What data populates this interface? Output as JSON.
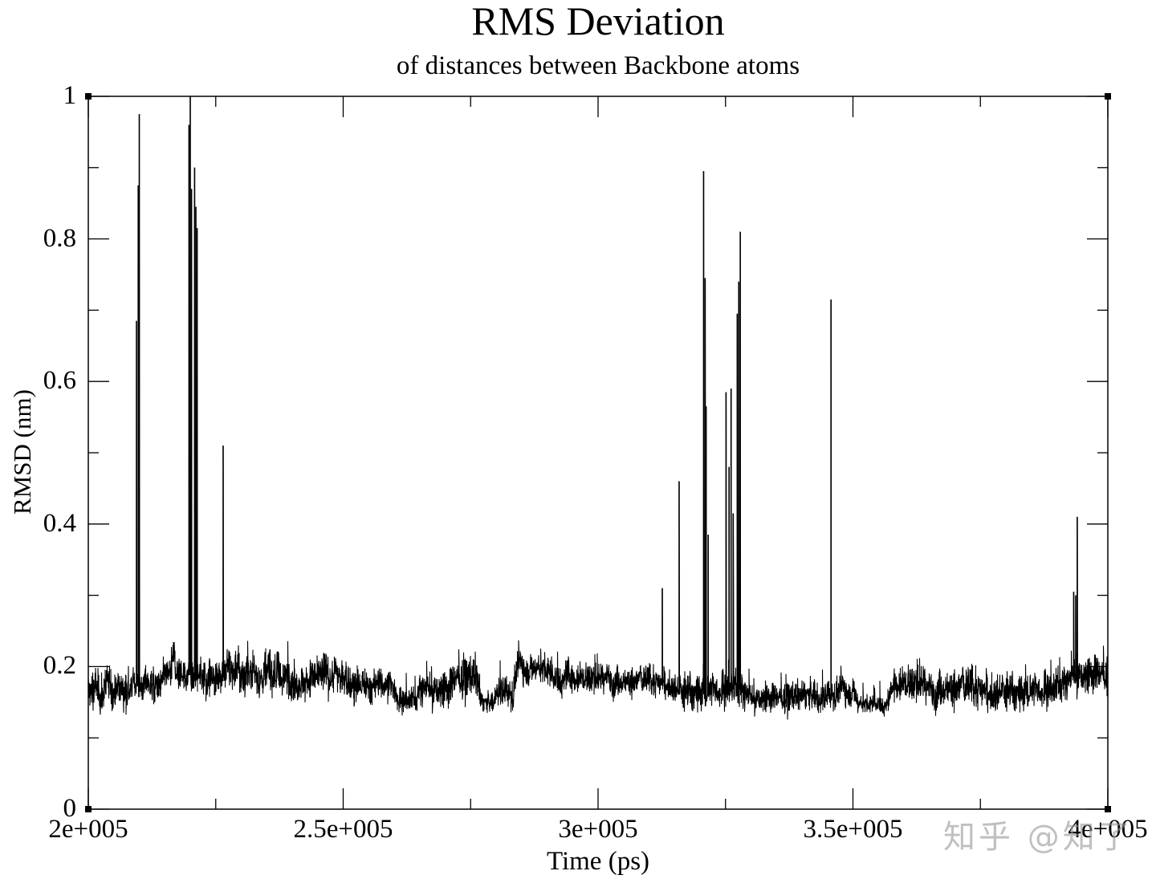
{
  "chart_data": {
    "type": "line",
    "title": "RMS Deviation",
    "subtitle": "of distances between Backbone atoms",
    "xlabel": "Time (ps)",
    "ylabel": "RMSD (nm)",
    "xlim": [
      200000,
      400000
    ],
    "ylim": [
      0,
      1
    ],
    "x_ticks": [
      {
        "value": 200000,
        "label": "2e+005"
      },
      {
        "value": 250000,
        "label": "2.5e+005"
      },
      {
        "value": 300000,
        "label": "3e+005"
      },
      {
        "value": 350000,
        "label": "3.5e+005"
      },
      {
        "value": 400000,
        "label": "4e+005"
      }
    ],
    "y_ticks": [
      {
        "value": 0,
        "label": "0"
      },
      {
        "value": 0.2,
        "label": "0.2"
      },
      {
        "value": 0.4,
        "label": "0.4"
      },
      {
        "value": 0.6,
        "label": "0.6"
      },
      {
        "value": 0.8,
        "label": "0.8"
      },
      {
        "value": 1,
        "label": "1"
      }
    ],
    "grid": false,
    "legend": null,
    "line_color": "#000000",
    "baseline_segments": [
      {
        "t_start": 200000,
        "t_end": 208000,
        "mean": 0.165,
        "noise": 0.012
      },
      {
        "t_start": 208000,
        "t_end": 216000,
        "mean": 0.175,
        "noise": 0.01
      },
      {
        "t_start": 216000,
        "t_end": 226000,
        "mean": 0.188,
        "noise": 0.012
      },
      {
        "t_start": 226000,
        "t_end": 240000,
        "mean": 0.19,
        "noise": 0.013
      },
      {
        "t_start": 240000,
        "t_end": 254000,
        "mean": 0.182,
        "noise": 0.012
      },
      {
        "t_start": 254000,
        "t_end": 261000,
        "mean": 0.172,
        "noise": 0.01
      },
      {
        "t_start": 261000,
        "t_end": 265000,
        "mean": 0.152,
        "noise": 0.008
      },
      {
        "t_start": 265000,
        "t_end": 272000,
        "mean": 0.17,
        "noise": 0.012
      },
      {
        "t_start": 272000,
        "t_end": 277000,
        "mean": 0.185,
        "noise": 0.012
      },
      {
        "t_start": 277000,
        "t_end": 280000,
        "mean": 0.147,
        "noise": 0.006
      },
      {
        "t_start": 280000,
        "t_end": 284000,
        "mean": 0.168,
        "noise": 0.01
      },
      {
        "t_start": 284000,
        "t_end": 291000,
        "mean": 0.198,
        "noise": 0.01
      },
      {
        "t_start": 291000,
        "t_end": 304000,
        "mean": 0.185,
        "noise": 0.01
      },
      {
        "t_start": 304000,
        "t_end": 316000,
        "mean": 0.178,
        "noise": 0.009
      },
      {
        "t_start": 316000,
        "t_end": 330000,
        "mean": 0.168,
        "noise": 0.012
      },
      {
        "t_start": 330000,
        "t_end": 346000,
        "mean": 0.157,
        "noise": 0.009
      },
      {
        "t_start": 346000,
        "t_end": 351000,
        "mean": 0.166,
        "noise": 0.009
      },
      {
        "t_start": 351000,
        "t_end": 358000,
        "mean": 0.148,
        "noise": 0.006
      },
      {
        "t_start": 358000,
        "t_end": 365000,
        "mean": 0.178,
        "noise": 0.012
      },
      {
        "t_start": 365000,
        "t_end": 394000,
        "mean": 0.168,
        "noise": 0.012
      },
      {
        "t_start": 394000,
        "t_end": 400000,
        "mean": 0.19,
        "noise": 0.012
      }
    ],
    "spikes": [
      {
        "t": 209450,
        "value": 0.685
      },
      {
        "t": 209800,
        "value": 0.875
      },
      {
        "t": 210000,
        "value": 0.975
      },
      {
        "t": 219750,
        "value": 0.96
      },
      {
        "t": 220000,
        "value": 1.0
      },
      {
        "t": 220250,
        "value": 0.87
      },
      {
        "t": 220850,
        "value": 0.9
      },
      {
        "t": 221100,
        "value": 0.845
      },
      {
        "t": 221350,
        "value": 0.815
      },
      {
        "t": 226450,
        "value": 0.51
      },
      {
        "t": 312600,
        "value": 0.31
      },
      {
        "t": 315900,
        "value": 0.46
      },
      {
        "t": 320700,
        "value": 0.895
      },
      {
        "t": 321000,
        "value": 0.745
      },
      {
        "t": 321200,
        "value": 0.565
      },
      {
        "t": 321600,
        "value": 0.385
      },
      {
        "t": 325100,
        "value": 0.585
      },
      {
        "t": 325700,
        "value": 0.48
      },
      {
        "t": 326100,
        "value": 0.59
      },
      {
        "t": 326500,
        "value": 0.415
      },
      {
        "t": 327300,
        "value": 0.695
      },
      {
        "t": 327600,
        "value": 0.74
      },
      {
        "t": 327900,
        "value": 0.81
      },
      {
        "t": 345700,
        "value": 0.715
      },
      {
        "t": 393300,
        "value": 0.305
      },
      {
        "t": 393700,
        "value": 0.3
      },
      {
        "t": 394000,
        "value": 0.41
      }
    ]
  },
  "watermark": {
    "text": "知乎 @知了"
  }
}
